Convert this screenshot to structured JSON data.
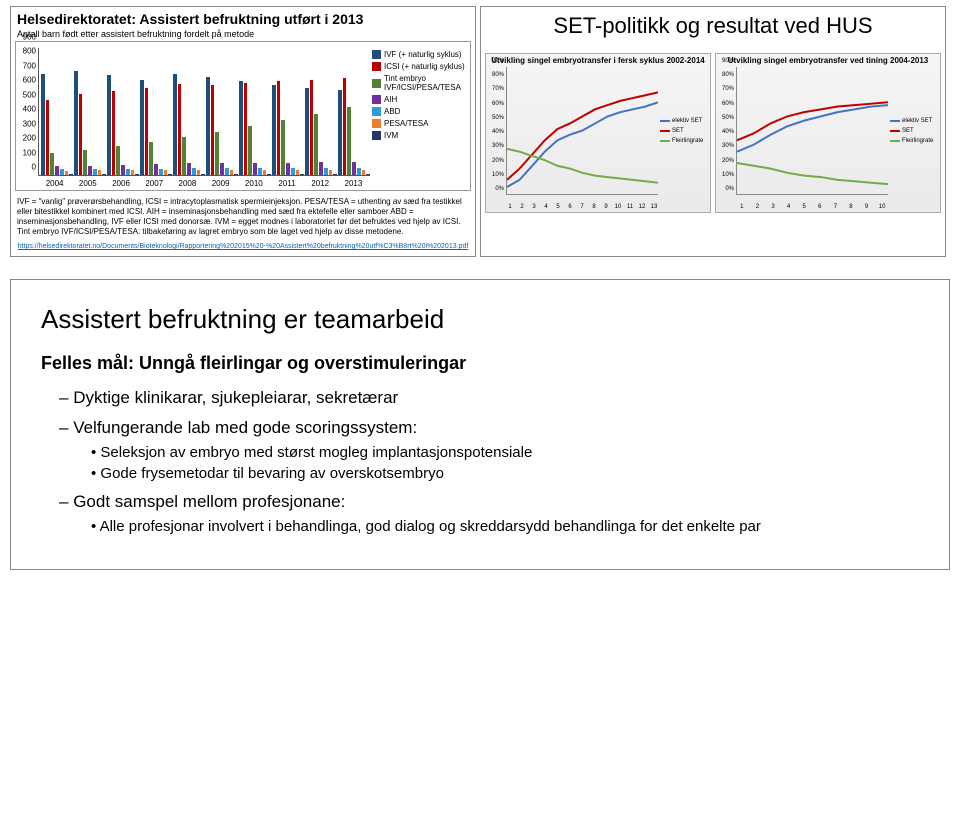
{
  "top_left": {
    "title": "Helsedirektoratet: Assistert befruktning utført i 2013",
    "subtitle": "Antall barn født etter assistert befruktning fordelt på metode",
    "bar_chart": {
      "type": "bar",
      "y_ticks": [
        0,
        100,
        200,
        300,
        400,
        500,
        600,
        700,
        800,
        900
      ],
      "ymax": 900,
      "categories": [
        "2004",
        "2005",
        "2006",
        "2007",
        "2008",
        "2009",
        "2010",
        "2011",
        "2012",
        "2013"
      ],
      "series": [
        {
          "name": "IVF (+ naturlig syklus)",
          "color": "#1f4e79",
          "values": [
            700,
            720,
            690,
            660,
            700,
            680,
            650,
            620,
            600,
            590
          ]
        },
        {
          "name": "ICSI (+ naturlig syklus)",
          "color": "#c00000",
          "values": [
            520,
            560,
            580,
            600,
            630,
            620,
            640,
            650,
            660,
            670
          ]
        },
        {
          "name": "Tint embryo IVF/ICSI/PESA/TESA",
          "color": "#548235",
          "values": [
            150,
            170,
            200,
            230,
            260,
            300,
            340,
            380,
            420,
            470
          ]
        },
        {
          "name": "AIH",
          "color": "#7030a0",
          "values": [
            60,
            65,
            70,
            75,
            80,
            80,
            85,
            85,
            90,
            90
          ]
        },
        {
          "name": "ABD",
          "color": "#2e9bd6",
          "values": [
            40,
            42,
            44,
            45,
            46,
            47,
            48,
            48,
            49,
            50
          ]
        },
        {
          "name": "PESA/TESA",
          "color": "#ed7d31",
          "values": [
            30,
            32,
            33,
            35,
            35,
            36,
            36,
            37,
            38,
            38
          ]
        },
        {
          "name": "IVM",
          "color": "#203864",
          "values": [
            5,
            5,
            6,
            6,
            7,
            7,
            8,
            8,
            8,
            9
          ]
        }
      ]
    },
    "definitions": "IVF = \"vanlig\" prøverørsbehandling, ICSI = intracytoplasmatisk spermieinjeksjon. PESA/TESA = uthenting av sæd fra testikkel eller bitestikkel kombinert med ICSI. AIH = inseminasjonsbehandling med sæd fra ektefelle eller samboer ABD = inseminasjonsbehandling, IVF eller ICSI med donorsæ. IVM = egget modnes i laboratoriet før det befruktes ved hjelp av ICSI. Tint embryo IVF/ICSI/PESA/TESA: tilbakeføring av lagret embryo som ble laget ved hjelp av disse metodene.",
    "url": "https://helsedirektoratet.no/Documents/Bioteknologi/Rapportering%202015%20-%20Assistert%20befruktning%20utf%C3%B8rt%20i%202013.pdf"
  },
  "top_right": {
    "title": "SET-politikk og resultat ved HUS",
    "charts": [
      {
        "title": "Utvikling singel embryotransfer i fersk syklus 2002-2014",
        "y_ticks": [
          "0%",
          "10%",
          "20%",
          "30%",
          "40%",
          "50%",
          "60%",
          "70%",
          "80%",
          "90%"
        ],
        "ymax": 90,
        "x_ticks": [
          "1",
          "2",
          "3",
          "4",
          "5",
          "6",
          "7",
          "8",
          "9",
          "10",
          "11",
          "12",
          "13"
        ],
        "series": [
          {
            "name": "elektiv SET",
            "color": "#4472c4",
            "values": [
              5,
              10,
              20,
              30,
              38,
              42,
              45,
              50,
              55,
              58,
              60,
              62,
              65
            ]
          },
          {
            "name": "SET",
            "color": "#c00000",
            "values": [
              10,
              18,
              28,
              38,
              46,
              50,
              55,
              60,
              63,
              66,
              68,
              70,
              72
            ]
          },
          {
            "name": "Fleirlingrate",
            "color": "#70ad47",
            "values": [
              32,
              30,
              27,
              24,
              20,
              18,
              15,
              13,
              12,
              11,
              10,
              9,
              8
            ]
          }
        ]
      },
      {
        "title": "Utvikling singel embryotransfer ved tining 2004-2013",
        "y_ticks": [
          "0%",
          "10%",
          "20%",
          "30%",
          "40%",
          "50%",
          "60%",
          "70%",
          "80%",
          "90%"
        ],
        "ymax": 90,
        "x_ticks": [
          "1",
          "2",
          "3",
          "4",
          "5",
          "6",
          "7",
          "8",
          "9",
          "10"
        ],
        "series": [
          {
            "name": "elektiv SET",
            "color": "#4472c4",
            "values": [
              30,
              35,
              42,
              48,
              52,
              55,
              58,
              60,
              62,
              63
            ]
          },
          {
            "name": "SET",
            "color": "#c00000",
            "values": [
              38,
              43,
              50,
              55,
              58,
              60,
              62,
              63,
              64,
              65
            ]
          },
          {
            "name": "Fleirlingrate",
            "color": "#70ad47",
            "values": [
              22,
              20,
              18,
              15,
              13,
              12,
              10,
              9,
              8,
              7
            ]
          }
        ]
      }
    ]
  },
  "bottom": {
    "heading": "Assistert befruktning er teamarbeid",
    "subheading": "Felles mål: Unngå fleirlingar og overstimuleringar",
    "items": [
      {
        "l1": "Dyktige klinikarar, sjukepleiarar, sekretærar"
      },
      {
        "l1": "Velfungerande lab med gode scoringssystem:",
        "l2": [
          "Seleksjon av embryo med størst mogleg implantasjonspotensiale",
          "Gode frysemetodar til bevaring av overskotsembryo"
        ]
      },
      {
        "l1": "Godt samspel mellom profesjonane:",
        "l2": [
          "Alle profesjonar involvert i behandlinga, god dialog og skreddarsydd behandlinga for det enkelte par"
        ]
      }
    ]
  }
}
